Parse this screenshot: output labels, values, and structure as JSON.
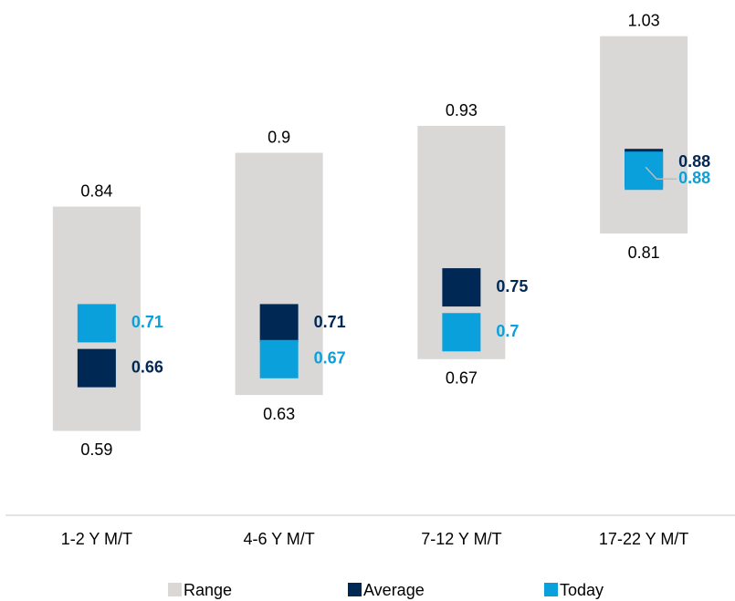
{
  "chart_data": {
    "type": "range_marker",
    "categories": [
      "1-2 Y M/T",
      "4-6 Y M/T",
      "7-12 Y M/T",
      "17-22 Y M/T"
    ],
    "series": [
      {
        "name": "Range",
        "color": "#d9d8d6",
        "values": [
          [
            0.59,
            0.84
          ],
          [
            0.63,
            0.9
          ],
          [
            0.67,
            0.93
          ],
          [
            0.81,
            1.03
          ]
        ]
      },
      {
        "name": "Average",
        "color": "#002855",
        "values": [
          0.66,
          0.71,
          0.75,
          0.88
        ]
      },
      {
        "name": "Today",
        "color": "#0aa0dc",
        "values": [
          0.71,
          0.67,
          0.7,
          0.88
        ]
      }
    ],
    "ylim": [
      0.5,
      1.05
    ],
    "legend": "bottom"
  }
}
